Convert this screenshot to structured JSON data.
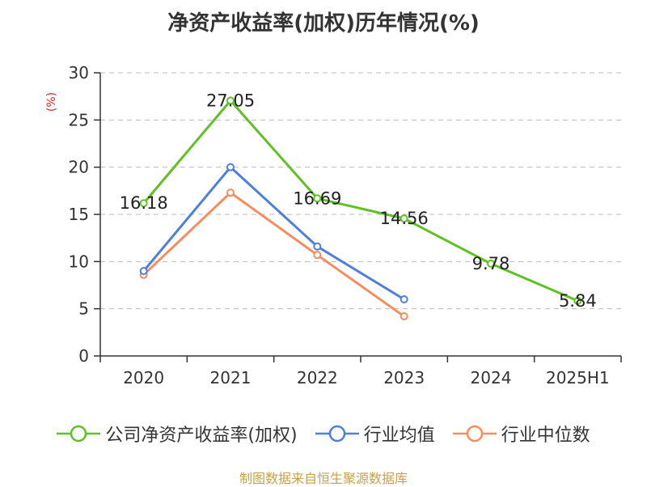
{
  "title": "净资产收益率(加权)历年情况(%)",
  "unit_label": "(%)",
  "footer": "制图数据来自恒生聚源数据库",
  "chart_data": {
    "type": "line",
    "title": "净资产收益率(加权)历年情况(%)",
    "categories": [
      "2020",
      "2021",
      "2022",
      "2023",
      "2024",
      "2025H1"
    ],
    "ylim": [
      0,
      30
    ],
    "yticks": [
      0,
      5,
      10,
      15,
      20,
      25,
      30
    ],
    "ylabel": "(%)",
    "grid": true,
    "legend_position": "bottom",
    "series": [
      {
        "name": "公司净资产收益率(加权)",
        "color": "#5fc123",
        "values": [
          16.18,
          27.05,
          16.69,
          14.56,
          9.78,
          5.84
        ],
        "labels": [
          "16.18",
          "27.05",
          "16.69",
          "14.56",
          "9.78",
          "5.84"
        ]
      },
      {
        "name": "行业均值",
        "color": "#4e7fdd",
        "values": [
          9.0,
          20.0,
          11.6,
          6.0,
          null,
          null
        ]
      },
      {
        "name": "行业中位数",
        "color": "#f58d5e",
        "values": [
          8.6,
          17.3,
          10.7,
          4.2,
          null,
          null
        ]
      }
    ]
  }
}
